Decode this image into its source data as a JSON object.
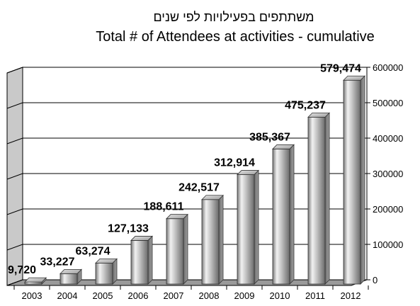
{
  "chart_data": {
    "type": "bar",
    "title": "משתתפים בפעילויות לפי שנים",
    "subtitle": "Total # of Attendees at activities - cumulative",
    "xlabel": "",
    "ylabel": "",
    "categories": [
      "2003",
      "2004",
      "2005",
      "2006",
      "2007",
      "2008",
      "2009",
      "2010",
      "2011",
      "2012"
    ],
    "values": [
      9720,
      33227,
      63274,
      127133,
      188611,
      242517,
      312914,
      385367,
      475237,
      579474
    ],
    "data_labels": [
      "9,720",
      "33,227",
      "63,274",
      "127,133",
      "188,611",
      "242,517",
      "312,914",
      "385,367",
      "475,237",
      "579,474"
    ],
    "y_ticks": [
      0,
      100000,
      200000,
      300000,
      400000,
      500000,
      600000
    ],
    "y_tick_labels": [
      "0",
      "100000",
      "200000",
      "300000",
      "400000",
      "500000",
      "600000"
    ],
    "ylim": [
      0,
      600000
    ],
    "y_axis_position": "right",
    "grid": true,
    "legend": "none",
    "style": "3d-silver-bars"
  }
}
